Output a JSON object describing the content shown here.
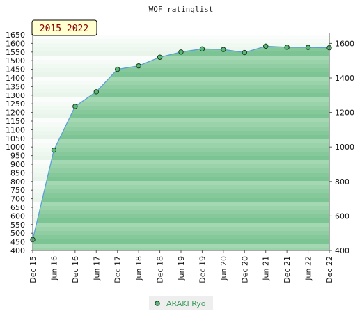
{
  "chart_data": {
    "type": "area",
    "title": "WOF ratinglist",
    "badge": "2015–2022",
    "categories": [
      "Dec 15",
      "Jun 16",
      "Dec 16",
      "Jun 17",
      "Dec 17",
      "Jun 18",
      "Dec 18",
      "Jun 19",
      "Dec 19",
      "Jun 20",
      "Dec 20",
      "Jun 21",
      "Dec 21",
      "Jun 22",
      "Dec 22"
    ],
    "series": [
      {
        "name": "ARAKI Ryo",
        "values": [
          463,
          982,
          1235,
          1320,
          1450,
          1470,
          1520,
          1550,
          1568,
          1565,
          1547,
          1584,
          1578,
          1577,
          1575
        ]
      }
    ],
    "ylim": [
      400,
      1650
    ],
    "left_ticks": [
      1650,
      1600,
      1550,
      1500,
      1450,
      1400,
      1350,
      1300,
      1250,
      1200,
      1150,
      1100,
      1050,
      1000,
      950,
      900,
      850,
      800,
      750,
      700,
      650,
      600,
      550,
      500,
      450,
      400
    ],
    "right_ticks": [
      1600,
      1400,
      1200,
      1000,
      800,
      600,
      400
    ],
    "grid": false,
    "legend_position": "bottom-center",
    "colors": {
      "line": "#5aa0d8",
      "point_fill": "#5ab87a",
      "point_stroke": "#1a3a1a",
      "fill_dark": "#7cc494",
      "fill_light": "#a8dab6",
      "bg_light": "#ffffff",
      "bg_dark": "#dff0e3",
      "badge_bg": "#ffffd0",
      "badge_text": "#8b0000",
      "legend_bg": "#eeeeee"
    }
  }
}
